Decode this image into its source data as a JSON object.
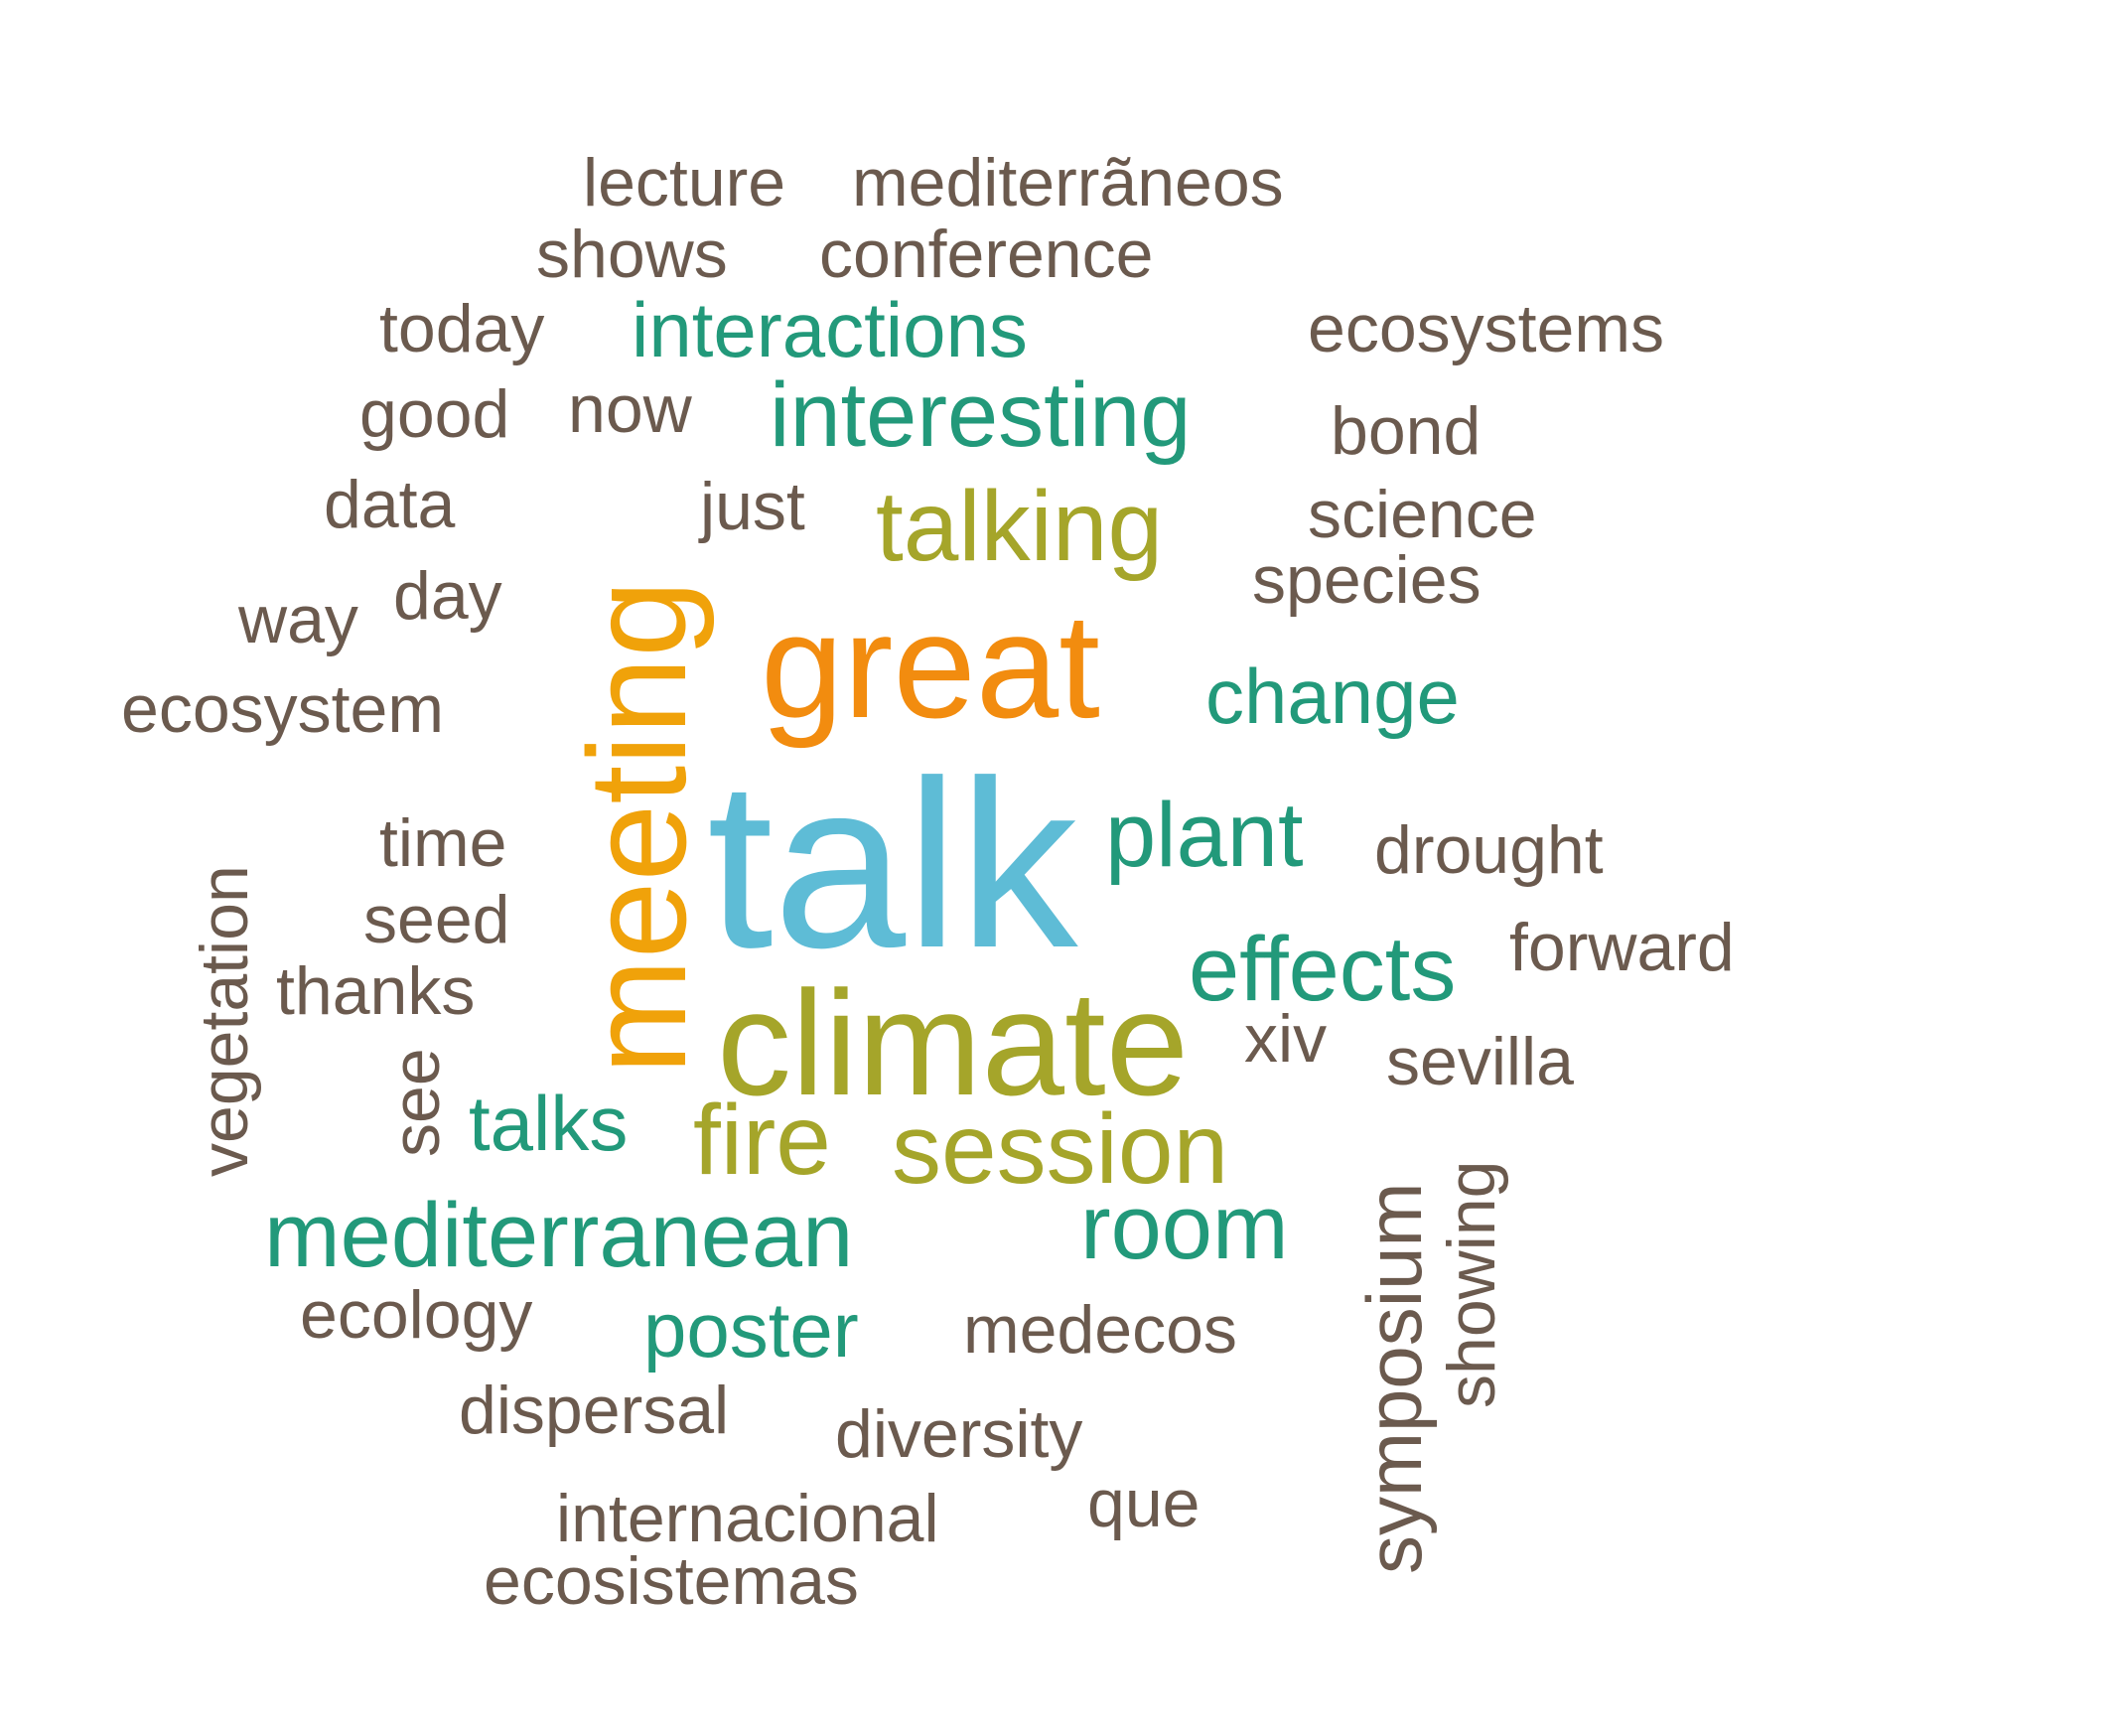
{
  "words": {
    "lecture": "lecture",
    "mediterraneos": "mediterrãneos",
    "shows": "shows",
    "conference": "conference",
    "today": "today",
    "interactions": "interactions",
    "ecosystems": "ecosystems",
    "good": "good",
    "now": "now",
    "interesting": "interesting",
    "bond": "bond",
    "data": "data",
    "just": "just",
    "talking": "talking",
    "science": "science",
    "species": "species",
    "way": "way",
    "day": "day",
    "meeting": "meeting",
    "great": "great",
    "change": "change",
    "ecosystem": "ecosystem",
    "talk": "talk",
    "plant": "plant",
    "drought": "drought",
    "vegetation": "vegetation",
    "time": "time",
    "seed": "seed",
    "effects": "effects",
    "forward": "forward",
    "thanks": "thanks",
    "climate": "climate",
    "xiv": "xiv",
    "sevilla": "sevilla",
    "see": "see",
    "talks": "talks",
    "fire": "fire",
    "session": "session",
    "symposium": "symposium",
    "showing": "showing",
    "mediterranean": "mediterranean",
    "room": "room",
    "ecology": "ecology",
    "poster": "poster",
    "medecos": "medecos",
    "dispersal": "dispersal",
    "diversity": "diversity",
    "internacional": "internacional",
    "que": "que",
    "ecosistemas": "ecosistemas"
  },
  "colors": {
    "brown": "#6b5a4e",
    "teal": "#22997a",
    "olive": "#a5a52a",
    "orange": "#f28c0f",
    "amber": "#f0a20a",
    "blue": "#5ebcd6",
    "background": "#ffffff"
  }
}
